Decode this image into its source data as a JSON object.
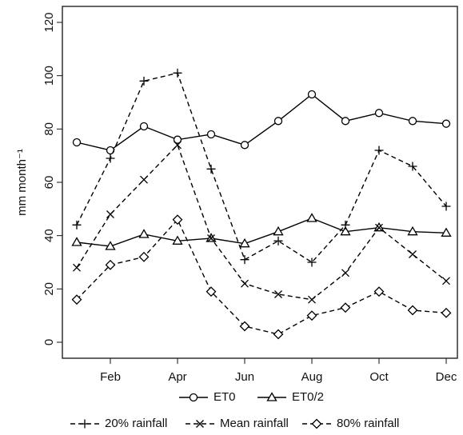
{
  "chart_data": {
    "type": "line",
    "y_label": "mm month⁻¹",
    "categories": [
      null,
      "Feb",
      null,
      "Apr",
      null,
      "Jun",
      null,
      "Aug",
      null,
      "Oct",
      null,
      "Dec"
    ],
    "ylim": [
      -6,
      126
    ],
    "yticks": [
      0,
      20,
      40,
      60,
      80,
      100,
      120
    ],
    "series": [
      {
        "name": "ET0",
        "color": "#000000",
        "marker": "circle",
        "dashed": false,
        "values": [
          75,
          72,
          81,
          76,
          78,
          74,
          83,
          93,
          83,
          86,
          83,
          82
        ]
      },
      {
        "name": "ET0/2",
        "color": "#000000",
        "marker": "triangle",
        "dashed": false,
        "values": [
          37.5,
          36,
          40.5,
          38,
          39,
          37,
          41.5,
          46.5,
          41.5,
          43,
          41.5,
          41
        ]
      },
      {
        "name": "20% rainfall",
        "color": "#000000",
        "marker": "plus",
        "dashed": true,
        "values": [
          44,
          69,
          98,
          101,
          65,
          31,
          38,
          30,
          44,
          72,
          66,
          51
        ]
      },
      {
        "name": "Mean rainfall",
        "color": "#000000",
        "marker": "cross",
        "dashed": true,
        "values": [
          28,
          48,
          61,
          74,
          39,
          22,
          18,
          16,
          26,
          43,
          33,
          23
        ]
      },
      {
        "name": "80% rainfall",
        "color": "#000000",
        "marker": "diamond",
        "dashed": true,
        "values": [
          16,
          29,
          32,
          46,
          19,
          6,
          3,
          10,
          13,
          19,
          12,
          11
        ]
      }
    ]
  }
}
